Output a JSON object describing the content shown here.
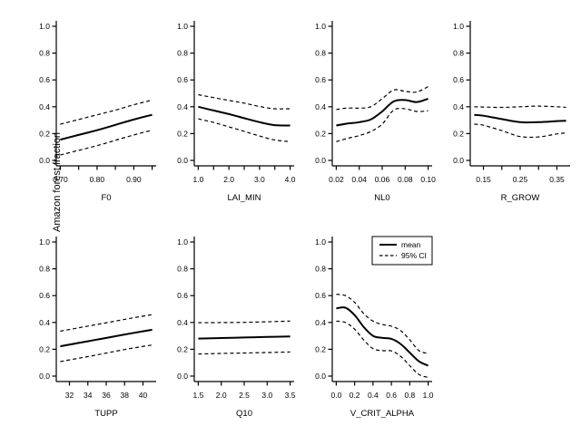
{
  "figure": {
    "ylab": "Amazon forest fraction",
    "background": "#ffffff",
    "foreground": "#000000",
    "legend": {
      "position": "topright-of-V_CRIT_ALPHA-panel",
      "items": [
        {
          "label": "mean",
          "style": "solid"
        },
        {
          "label": "95% CI",
          "style": "dashed"
        }
      ]
    }
  },
  "chart_data": [
    {
      "type": "line",
      "xlabel": "F0",
      "ylabel": "Amazon forest fraction",
      "row": 0,
      "col": 0,
      "xlim": [
        0.7,
        0.95
      ],
      "ylim": [
        0,
        1
      ],
      "yticks": [
        0.0,
        0.2,
        0.4,
        0.6,
        0.8,
        1.0
      ],
      "xticks": [
        0.7,
        0.75,
        0.8,
        0.85,
        0.9,
        0.95
      ],
      "xtick_labels": [
        {
          "v": 0.7,
          "text": "0.70"
        },
        {
          "v": 0.8,
          "text": "0.80"
        },
        {
          "v": 0.9,
          "text": "0.90"
        }
      ],
      "x": [
        0.7,
        0.75,
        0.8,
        0.85,
        0.9,
        0.95
      ],
      "series": [
        {
          "name": "mean",
          "values": [
            0.155,
            0.19,
            0.225,
            0.265,
            0.305,
            0.34
          ]
        },
        {
          "name": "upper_95ci",
          "values": [
            0.27,
            0.305,
            0.34,
            0.375,
            0.415,
            0.45
          ]
        },
        {
          "name": "lower_95ci",
          "values": [
            0.04,
            0.075,
            0.11,
            0.15,
            0.19,
            0.225
          ]
        }
      ]
    },
    {
      "type": "line",
      "xlabel": "LAI_MIN",
      "ylabel": "Amazon forest fraction",
      "row": 0,
      "col": 1,
      "xlim": [
        1.0,
        4.0
      ],
      "ylim": [
        0,
        1
      ],
      "yticks": [
        0.0,
        0.2,
        0.4,
        0.6,
        0.8,
        1.0
      ],
      "xticks": [
        1.0,
        1.5,
        2.0,
        2.5,
        3.0,
        3.5,
        4.0
      ],
      "xtick_labels": [
        {
          "v": 1.0,
          "text": "1.0"
        },
        {
          "v": 2.0,
          "text": "2.0"
        },
        {
          "v": 3.0,
          "text": "3.0"
        },
        {
          "v": 4.0,
          "text": "4.0"
        }
      ],
      "x": [
        1.0,
        1.5,
        2.0,
        2.5,
        3.0,
        3.5,
        4.0
      ],
      "series": [
        {
          "name": "mean",
          "values": [
            0.4,
            0.372,
            0.345,
            0.315,
            0.285,
            0.263,
            0.26
          ]
        },
        {
          "name": "upper_95ci",
          "values": [
            0.49,
            0.468,
            0.447,
            0.427,
            0.402,
            0.385,
            0.385
          ]
        },
        {
          "name": "lower_95ci",
          "values": [
            0.31,
            0.283,
            0.25,
            0.217,
            0.182,
            0.152,
            0.14
          ]
        }
      ]
    },
    {
      "type": "line",
      "xlabel": "NL0",
      "ylabel": "Amazon forest fraction",
      "row": 0,
      "col": 2,
      "xlim": [
        0.02,
        0.1
      ],
      "ylim": [
        0,
        1
      ],
      "yticks": [
        0.0,
        0.2,
        0.4,
        0.6,
        0.8,
        1.0
      ],
      "xticks": [
        0.02,
        0.04,
        0.06,
        0.08,
        0.1
      ],
      "xtick_labels": [
        {
          "v": 0.02,
          "text": "0.02"
        },
        {
          "v": 0.04,
          "text": "0.04"
        },
        {
          "v": 0.06,
          "text": "0.06"
        },
        {
          "v": 0.08,
          "text": "0.08"
        },
        {
          "v": 0.1,
          "text": "0.10"
        }
      ],
      "x": [
        0.02,
        0.03,
        0.04,
        0.05,
        0.06,
        0.07,
        0.08,
        0.09,
        0.1
      ],
      "series": [
        {
          "name": "mean",
          "values": [
            0.26,
            0.275,
            0.285,
            0.305,
            0.365,
            0.44,
            0.45,
            0.435,
            0.46
          ]
        },
        {
          "name": "upper_95ci",
          "values": [
            0.38,
            0.39,
            0.39,
            0.4,
            0.46,
            0.525,
            0.515,
            0.51,
            0.55
          ]
        },
        {
          "name": "lower_95ci",
          "values": [
            0.14,
            0.165,
            0.185,
            0.215,
            0.27,
            0.375,
            0.385,
            0.365,
            0.37
          ]
        }
      ]
    },
    {
      "type": "line",
      "xlabel": "R_GROW",
      "ylabel": "Amazon forest fraction",
      "row": 0,
      "col": 3,
      "xlim": [
        0.125,
        0.375
      ],
      "ylim": [
        0,
        1
      ],
      "yticks": [
        0.0,
        0.2,
        0.4,
        0.6,
        0.8,
        1.0
      ],
      "xticks": [
        0.15,
        0.2,
        0.25,
        0.3,
        0.35
      ],
      "xtick_labels": [
        {
          "v": 0.15,
          "text": "0.15"
        },
        {
          "v": 0.25,
          "text": "0.25"
        },
        {
          "v": 0.35,
          "text": "0.35"
        }
      ],
      "x": [
        0.125,
        0.15,
        0.2,
        0.25,
        0.3,
        0.35,
        0.375
      ],
      "series": [
        {
          "name": "mean",
          "values": [
            0.34,
            0.333,
            0.308,
            0.285,
            0.285,
            0.293,
            0.295
          ]
        },
        {
          "name": "upper_95ci",
          "values": [
            0.4,
            0.398,
            0.395,
            0.4,
            0.405,
            0.4,
            0.395
          ]
        },
        {
          "name": "lower_95ci",
          "values": [
            0.27,
            0.262,
            0.222,
            0.178,
            0.175,
            0.197,
            0.205
          ]
        }
      ]
    },
    {
      "type": "line",
      "xlabel": "TUPP",
      "ylabel": "Amazon forest fraction",
      "row": 1,
      "col": 0,
      "xlim": [
        31,
        41
      ],
      "ylim": [
        0,
        1
      ],
      "yticks": [
        0.0,
        0.2,
        0.4,
        0.6,
        0.8,
        1.0
      ],
      "xticks": [
        32,
        34,
        36,
        38,
        40
      ],
      "xtick_labels": [
        {
          "v": 32,
          "text": "32"
        },
        {
          "v": 34,
          "text": "34"
        },
        {
          "v": 36,
          "text": "36"
        },
        {
          "v": 38,
          "text": "38"
        },
        {
          "v": 40,
          "text": "40"
        }
      ],
      "x": [
        31,
        33,
        35,
        37,
        39,
        41
      ],
      "series": [
        {
          "name": "mean",
          "values": [
            0.222,
            0.247,
            0.272,
            0.297,
            0.322,
            0.345
          ]
        },
        {
          "name": "upper_95ci",
          "values": [
            0.335,
            0.36,
            0.385,
            0.41,
            0.435,
            0.458
          ]
        },
        {
          "name": "lower_95ci",
          "values": [
            0.108,
            0.133,
            0.158,
            0.185,
            0.21,
            0.232
          ]
        }
      ]
    },
    {
      "type": "line",
      "xlabel": "Q10",
      "ylabel": "Amazon forest fraction",
      "row": 1,
      "col": 1,
      "xlim": [
        1.5,
        3.5
      ],
      "ylim": [
        0,
        1
      ],
      "yticks": [
        0.0,
        0.2,
        0.4,
        0.6,
        0.8,
        1.0
      ],
      "xticks": [
        1.5,
        2.0,
        2.5,
        3.0,
        3.5
      ],
      "xtick_labels": [
        {
          "v": 1.5,
          "text": "1.5"
        },
        {
          "v": 2.0,
          "text": "2.0"
        },
        {
          "v": 2.5,
          "text": "2.5"
        },
        {
          "v": 3.0,
          "text": "3.0"
        },
        {
          "v": 3.5,
          "text": "3.5"
        }
      ],
      "x": [
        1.5,
        2.0,
        2.5,
        3.0,
        3.5
      ],
      "series": [
        {
          "name": "mean",
          "values": [
            0.28,
            0.284,
            0.288,
            0.292,
            0.296
          ]
        },
        {
          "name": "upper_95ci",
          "values": [
            0.398,
            0.399,
            0.401,
            0.405,
            0.41
          ]
        },
        {
          "name": "lower_95ci",
          "values": [
            0.165,
            0.169,
            0.172,
            0.176,
            0.18
          ]
        }
      ]
    },
    {
      "type": "line",
      "xlabel": "V_CRIT_ALPHA",
      "ylabel": "Amazon forest fraction",
      "row": 1,
      "col": 2,
      "has_legend": true,
      "xlim": [
        0.0,
        1.0
      ],
      "ylim": [
        0,
        1
      ],
      "yticks": [
        0.0,
        0.2,
        0.4,
        0.6,
        0.8,
        1.0
      ],
      "xticks": [
        0.0,
        0.2,
        0.4,
        0.6,
        0.8,
        1.0
      ],
      "xtick_labels": [
        {
          "v": 0.0,
          "text": "0.0"
        },
        {
          "v": 0.2,
          "text": "0.2"
        },
        {
          "v": 0.4,
          "text": "0.4"
        },
        {
          "v": 0.6,
          "text": "0.6"
        },
        {
          "v": 0.8,
          "text": "0.8"
        },
        {
          "v": 1.0,
          "text": "1.0"
        }
      ],
      "x": [
        0.0,
        0.1,
        0.2,
        0.3,
        0.4,
        0.5,
        0.6,
        0.7,
        0.8,
        0.9,
        1.0
      ],
      "series": [
        {
          "name": "mean",
          "values": [
            0.505,
            0.51,
            0.455,
            0.365,
            0.3,
            0.285,
            0.278,
            0.24,
            0.175,
            0.11,
            0.078
          ]
        },
        {
          "name": "upper_95ci",
          "values": [
            0.61,
            0.6,
            0.55,
            0.465,
            0.41,
            0.385,
            0.372,
            0.34,
            0.27,
            0.19,
            0.168
          ]
        },
        {
          "name": "lower_95ci",
          "values": [
            0.41,
            0.4,
            0.35,
            0.268,
            0.205,
            0.19,
            0.188,
            0.148,
            0.078,
            0.012,
            -0.01
          ]
        }
      ]
    }
  ]
}
